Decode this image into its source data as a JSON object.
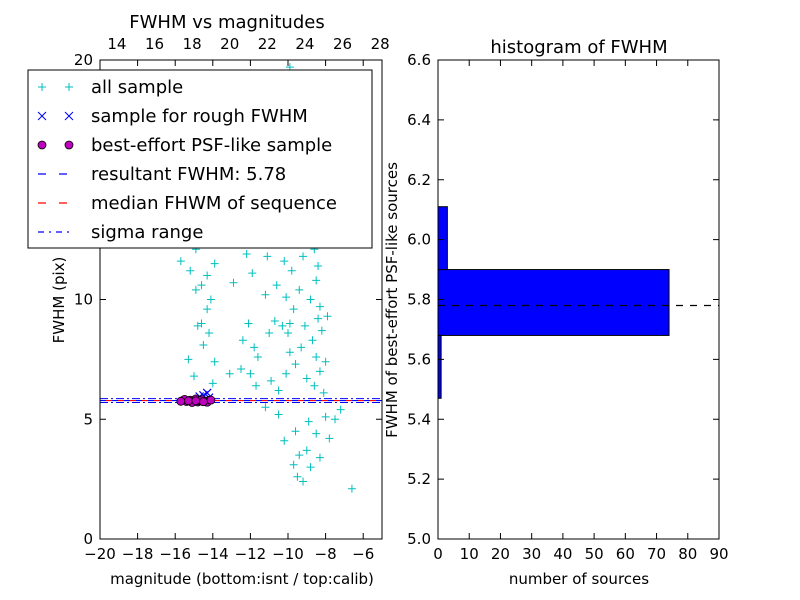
{
  "chart_data": [
    {
      "type": "scatter",
      "title": "FWHM vs magnitudes",
      "xlabel": "magnitude (bottom:isnt / top:calib)",
      "ylabel": "FWHM (pix)",
      "xlim": [
        -20,
        -5
      ],
      "ylim": [
        0,
        20
      ],
      "xticks": [
        "−20",
        "−18",
        "−16",
        "−14",
        "−12",
        "−10",
        "−8",
        "−6"
      ],
      "xtick_values": [
        -20,
        -18,
        -16,
        -14,
        -12,
        -10,
        -8,
        -6
      ],
      "yticks": [
        "0",
        "5",
        "10"
      ],
      "ytick_values": [
        0,
        5,
        10
      ],
      "top_axis": {
        "ticks": [
          "14",
          "16",
          "18",
          "20",
          "22",
          "24",
          "26",
          "28"
        ],
        "values": [
          14,
          16,
          18,
          20,
          22,
          24,
          26,
          28
        ],
        "lim": [
          13.1,
          28.1
        ]
      },
      "top_left_tick": "20",
      "legend": {
        "placement": "upper-left",
        "entries": [
          {
            "label": "all sample",
            "marker": "+",
            "color": "#00bfbf"
          },
          {
            "label": "sample for rough FWHM",
            "marker": "x",
            "color": "#0000ff"
          },
          {
            "label": "best-effort PSF-like sample",
            "marker": "o",
            "color": "#bf00bf"
          },
          {
            "label": "resultant FWHM: 5.78",
            "line": "dashed",
            "color": "#0000ff"
          },
          {
            "label": "median FHWM of sequence",
            "line": "dashed",
            "color": "#ff0000"
          },
          {
            "label": "sigma range",
            "line": "dashdot",
            "color": "#0000ff"
          }
        ]
      },
      "resultant_fwhm": 5.78,
      "median_fwhm": 5.78,
      "sigma_range": [
        5.7,
        5.86
      ],
      "series": [
        {
          "name": "all sample",
          "points": [
            [
              -15.5,
              18.2
            ],
            [
              -15.3,
              16.8
            ],
            [
              -15.4,
              14.5
            ],
            [
              -15.6,
              12.9
            ],
            [
              -15.2,
              11.2
            ],
            [
              -14.9,
              12.1
            ],
            [
              -15.7,
              11.6
            ],
            [
              -15.5,
              12.4
            ],
            [
              -15.0,
              15.7
            ],
            [
              -15.2,
              16.1
            ],
            [
              -15.4,
              14.2
            ],
            [
              -13.9,
              11.5
            ],
            [
              -13.5,
              12.6
            ],
            [
              -14.3,
              11.0
            ],
            [
              -14.1,
              10.0
            ],
            [
              -14.6,
              10.6
            ],
            [
              -14.9,
              10.4
            ],
            [
              -14.2,
              8.6
            ],
            [
              -14.8,
              8.9
            ],
            [
              -14.6,
              9.0
            ],
            [
              -15.3,
              7.5
            ],
            [
              -15.0,
              6.8
            ],
            [
              -14.5,
              8.1
            ],
            [
              -13.9,
              7.4
            ],
            [
              -14.0,
              6.5
            ],
            [
              -14.3,
              9.6
            ],
            [
              -11.7,
              12.7
            ],
            [
              -12.2,
              11.9
            ],
            [
              -11.4,
              12.4
            ],
            [
              -11.9,
              11.1
            ],
            [
              -11.1,
              11.8
            ],
            [
              -11.6,
              12.9
            ],
            [
              -11.3,
              16.2
            ],
            [
              -11.0,
              19.0
            ],
            [
              -11.5,
              17.9
            ],
            [
              -12.6,
              16.6
            ],
            [
              -11.8,
              13.9
            ],
            [
              -12.9,
              10.7
            ],
            [
              -10.9,
              14.3
            ],
            [
              -10.6,
              12.3
            ],
            [
              -11.2,
              10.2
            ],
            [
              -10.7,
              9.1
            ],
            [
              -11.8,
              8.0
            ],
            [
              -12.4,
              8.3
            ],
            [
              -12.1,
              9.0
            ],
            [
              -11.6,
              7.6
            ],
            [
              -11.0,
              8.6
            ],
            [
              -10.6,
              10.6
            ],
            [
              -12.5,
              7.1
            ],
            [
              -13.1,
              6.9
            ],
            [
              -11.7,
              6.4
            ],
            [
              -10.9,
              6.6
            ],
            [
              -12.0,
              6.9
            ],
            [
              -10.5,
              6.2
            ],
            [
              -10.2,
              4.1
            ],
            [
              -9.7,
              3.1
            ],
            [
              -9.5,
              2.6
            ],
            [
              -9.2,
              2.4
            ],
            [
              -9.4,
              3.5
            ],
            [
              -8.8,
              3.0
            ],
            [
              -8.5,
              4.4
            ],
            [
              -8.9,
              4.9
            ],
            [
              -9.6,
              4.5
            ],
            [
              -8.3,
              3.4
            ],
            [
              -9.0,
              3.7
            ],
            [
              -6.6,
              2.1
            ],
            [
              -7.8,
              4.2
            ],
            [
              -7.5,
              5.0
            ],
            [
              -7.2,
              5.4
            ],
            [
              -8.0,
              5.1
            ],
            [
              -10.5,
              5.2
            ],
            [
              -11.2,
              5.5
            ],
            [
              -9.9,
              19.7
            ],
            [
              -9.6,
              19.3
            ],
            [
              -10.3,
              18.5
            ],
            [
              -9.7,
              17.6
            ],
            [
              -8.5,
              17.1
            ],
            [
              -10.5,
              16.6
            ],
            [
              -8.8,
              15.7
            ],
            [
              -9.1,
              17.9
            ],
            [
              -10.0,
              15.2
            ],
            [
              -8.7,
              14.4
            ],
            [
              -9.3,
              13.8
            ],
            [
              -8.9,
              13.1
            ],
            [
              -9.5,
              12.6
            ],
            [
              -8.6,
              12.1
            ],
            [
              -10.2,
              11.6
            ],
            [
              -9.8,
              11.2
            ],
            [
              -8.5,
              10.8
            ],
            [
              -9.4,
              10.4
            ],
            [
              -8.8,
              10.0
            ],
            [
              -9.7,
              9.6
            ],
            [
              -8.4,
              9.2
            ],
            [
              -9.1,
              8.9
            ],
            [
              -10.0,
              8.6
            ],
            [
              -8.7,
              8.3
            ],
            [
              -9.3,
              8.0
            ],
            [
              -8.5,
              7.6
            ],
            [
              -9.6,
              7.3
            ],
            [
              -8.3,
              7.0
            ],
            [
              -9.0,
              6.7
            ],
            [
              -8.6,
              6.4
            ],
            [
              -10.1,
              6.9
            ],
            [
              -9.9,
              7.8
            ],
            [
              -10.3,
              8.9
            ],
            [
              -8.2,
              8.7
            ],
            [
              -8.0,
              7.4
            ],
            [
              -8.1,
              6.1
            ],
            [
              -9.2,
              11.8
            ],
            [
              -9.8,
              12.9
            ],
            [
              -10.4,
              13.6
            ],
            [
              -9.0,
              14.9
            ],
            [
              -8.4,
              11.4
            ],
            [
              -10.1,
              10.1
            ],
            [
              -8.3,
              9.7
            ],
            [
              -7.9,
              9.3
            ],
            [
              -8.9,
              16.3
            ],
            [
              -9.5,
              15.9
            ],
            [
              -10.6,
              14.1
            ],
            [
              -9.9,
              9.0
            ]
          ]
        },
        {
          "name": "sample for rough FWHM",
          "points": [
            [
              -14.5,
              6.0
            ],
            [
              -14.3,
              6.1
            ],
            [
              -14.7,
              5.95
            ],
            [
              -14.2,
              5.9
            ]
          ]
        },
        {
          "name": "best-effort PSF-like sample",
          "points": [
            [
              -15.6,
              5.78
            ],
            [
              -15.4,
              5.74
            ],
            [
              -15.2,
              5.8
            ],
            [
              -15.0,
              5.76
            ],
            [
              -14.8,
              5.72
            ],
            [
              -14.6,
              5.82
            ],
            [
              -14.4,
              5.75
            ],
            [
              -14.2,
              5.79
            ],
            [
              -15.5,
              5.83
            ],
            [
              -15.1,
              5.7
            ],
            [
              -14.9,
              5.85
            ],
            [
              -14.3,
              5.71
            ],
            [
              -15.3,
              5.77
            ],
            [
              -14.7,
              5.78
            ],
            [
              -14.1,
              5.8
            ],
            [
              -15.7,
              5.75
            ],
            [
              -14.5,
              5.73
            ],
            [
              -14.9,
              5.77
            ]
          ]
        }
      ]
    },
    {
      "type": "bar",
      "orientation": "horizontal",
      "title": "histogram of FWHM",
      "xlabel": "number of sources",
      "ylabel": "FWHM of best-effort PSF-like sources",
      "xlim": [
        0,
        90
      ],
      "ylim": [
        5.0,
        6.6
      ],
      "xticks": [
        "0",
        "10",
        "20",
        "30",
        "40",
        "50",
        "60",
        "70",
        "80",
        "90"
      ],
      "xtick_values": [
        0,
        10,
        20,
        30,
        40,
        50,
        60,
        70,
        80,
        90
      ],
      "yticks": [
        "5.0",
        "5.2",
        "5.4",
        "5.6",
        "5.8",
        "6.0",
        "6.2",
        "6.4",
        "6.6"
      ],
      "ytick_values": [
        5.0,
        5.2,
        5.4,
        5.6,
        5.8,
        6.0,
        6.2,
        6.4,
        6.6
      ],
      "bars": [
        {
          "y0": 5.47,
          "y1": 5.68,
          "count": 1
        },
        {
          "y0": 5.68,
          "y1": 5.9,
          "count": 74
        },
        {
          "y0": 5.9,
          "y1": 6.11,
          "count": 3
        }
      ],
      "reference_line": 5.78,
      "bar_color": "#0000ff"
    }
  ]
}
